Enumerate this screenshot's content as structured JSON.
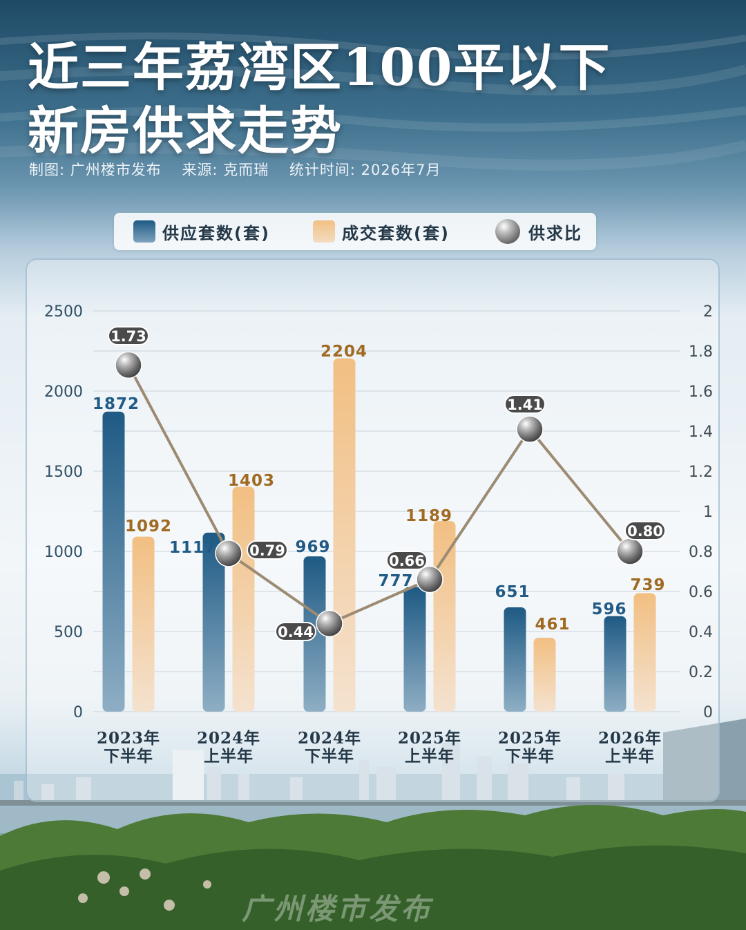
{
  "title_line1": "近三年荔湾区100平以下",
  "title_line2": "新房供求走势",
  "meta": {
    "maker": "制图: 广州楼市发布",
    "source": "来源: 克而瑞",
    "period": "统计时间: 2026年7月"
  },
  "legend": {
    "supply": "供应套数(套)",
    "sales": "成交套数(套)",
    "ratio": "供求比"
  },
  "watermark": "广州楼市发布",
  "colors": {
    "supply": "#1e5a84",
    "sales": "#f2c084",
    "sales_label": "#a06a22",
    "supply_label": "#215b85",
    "ratio_line": "#9c8b72"
  },
  "chart_data": {
    "type": "bar",
    "categories": [
      [
        "2023年",
        "下半年"
      ],
      [
        "2024年",
        "上半年"
      ],
      [
        "2024年",
        "下半年"
      ],
      [
        "2025年",
        "上半年"
      ],
      [
        "2025年",
        "下半年"
      ],
      [
        "2026年",
        "上半年"
      ]
    ],
    "series": [
      {
        "name": "供应套数(套)",
        "type": "bar",
        "axis": "left",
        "values": [
          1872,
          1117,
          969,
          777,
          651,
          596
        ]
      },
      {
        "name": "成交套数(套)",
        "type": "bar",
        "axis": "left",
        "values": [
          1092,
          1403,
          2204,
          1189,
          461,
          739
        ]
      },
      {
        "name": "供求比",
        "type": "line",
        "axis": "right",
        "values": [
          1.73,
          0.79,
          0.44,
          0.66,
          1.41,
          0.8
        ],
        "labels": [
          "1.73",
          "0.79",
          "0.44",
          "0.66",
          "1.41",
          "0.80"
        ]
      }
    ],
    "y_left": {
      "min": 0,
      "max": 2500,
      "ticks": [
        "0",
        "500",
        "1000",
        "1500",
        "2000",
        "2500"
      ]
    },
    "y_right": {
      "min": 0,
      "max": 2,
      "ticks": [
        "0",
        "0.2",
        "0.4",
        "0.6",
        "0.8",
        "1",
        "1.2",
        "1.4",
        "1.6",
        "1.8",
        "2"
      ]
    },
    "grid": true,
    "legend_position": "top"
  }
}
